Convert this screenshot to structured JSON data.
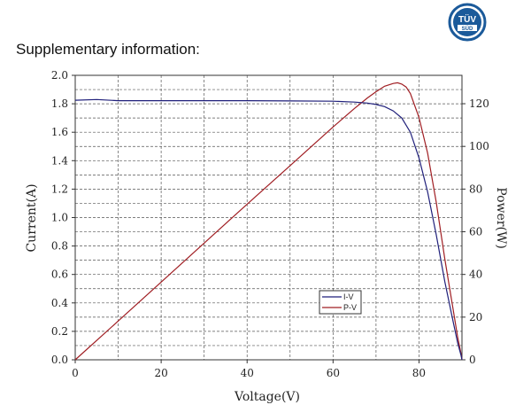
{
  "header": {
    "title": "Supplementary information:",
    "logo_top": "TÜV",
    "logo_bottom": "SÜD"
  },
  "colors": {
    "iv": "#1f1f7a",
    "pv": "#a01e23",
    "grid": "#555555",
    "logo": "#1b5a9a"
  },
  "chart_data": {
    "type": "line",
    "title": "",
    "xlabel": "Voltage(V)",
    "ylabel_left": "Current(A)",
    "ylabel_right": "Power(W)",
    "xlim": [
      0,
      90
    ],
    "ylim_left": [
      0,
      2.0
    ],
    "ylim_right": [
      0,
      133.3
    ],
    "x_ticks": [
      "0",
      "20",
      "40",
      "60",
      "80"
    ],
    "x_tick_values": [
      0,
      20,
      40,
      60,
      80
    ],
    "y_left_ticks": [
      "0.0",
      "0.2",
      "0.4",
      "0.6",
      "0.8",
      "1.0",
      "1.2",
      "1.4",
      "1.6",
      "1.8",
      "2.0"
    ],
    "y_left_tick_values": [
      0,
      0.2,
      0.4,
      0.6,
      0.8,
      1.0,
      1.2,
      1.4,
      1.6,
      1.8,
      2.0
    ],
    "y_right_ticks": [
      "0",
      "20",
      "40",
      "60",
      "80",
      "100",
      "120"
    ],
    "y_right_tick_values": [
      0,
      20,
      40,
      60,
      80,
      100,
      120
    ],
    "grid": true,
    "legend_position": "lower-right",
    "series": [
      {
        "name": "I-V",
        "axis": "left",
        "x": [
          0,
          5,
          10,
          20,
          30,
          40,
          50,
          60,
          65,
          68,
          70,
          72,
          74,
          76,
          78,
          80,
          82,
          84,
          86,
          88,
          89,
          89.8,
          90
        ],
        "y": [
          1.825,
          1.83,
          1.822,
          1.822,
          1.822,
          1.822,
          1.82,
          1.818,
          1.812,
          1.805,
          1.795,
          1.78,
          1.75,
          1.7,
          1.6,
          1.42,
          1.18,
          0.88,
          0.55,
          0.26,
          0.12,
          0.03,
          0.0
        ]
      },
      {
        "name": "P-V",
        "axis": "right",
        "x": [
          0,
          10,
          20,
          30,
          40,
          50,
          60,
          65,
          68,
          70,
          72,
          74,
          75,
          76,
          77,
          78,
          80,
          82,
          84,
          86,
          88,
          89,
          89.8,
          90
        ],
        "y": [
          0,
          18.2,
          36.4,
          54.7,
          72.9,
          91.0,
          109.1,
          117.8,
          122.7,
          125.6,
          128.2,
          129.5,
          129.8,
          129.2,
          127.8,
          124.8,
          113.6,
          96.8,
          73.9,
          47.3,
          22.9,
          10.7,
          2.7,
          0
        ]
      }
    ]
  }
}
